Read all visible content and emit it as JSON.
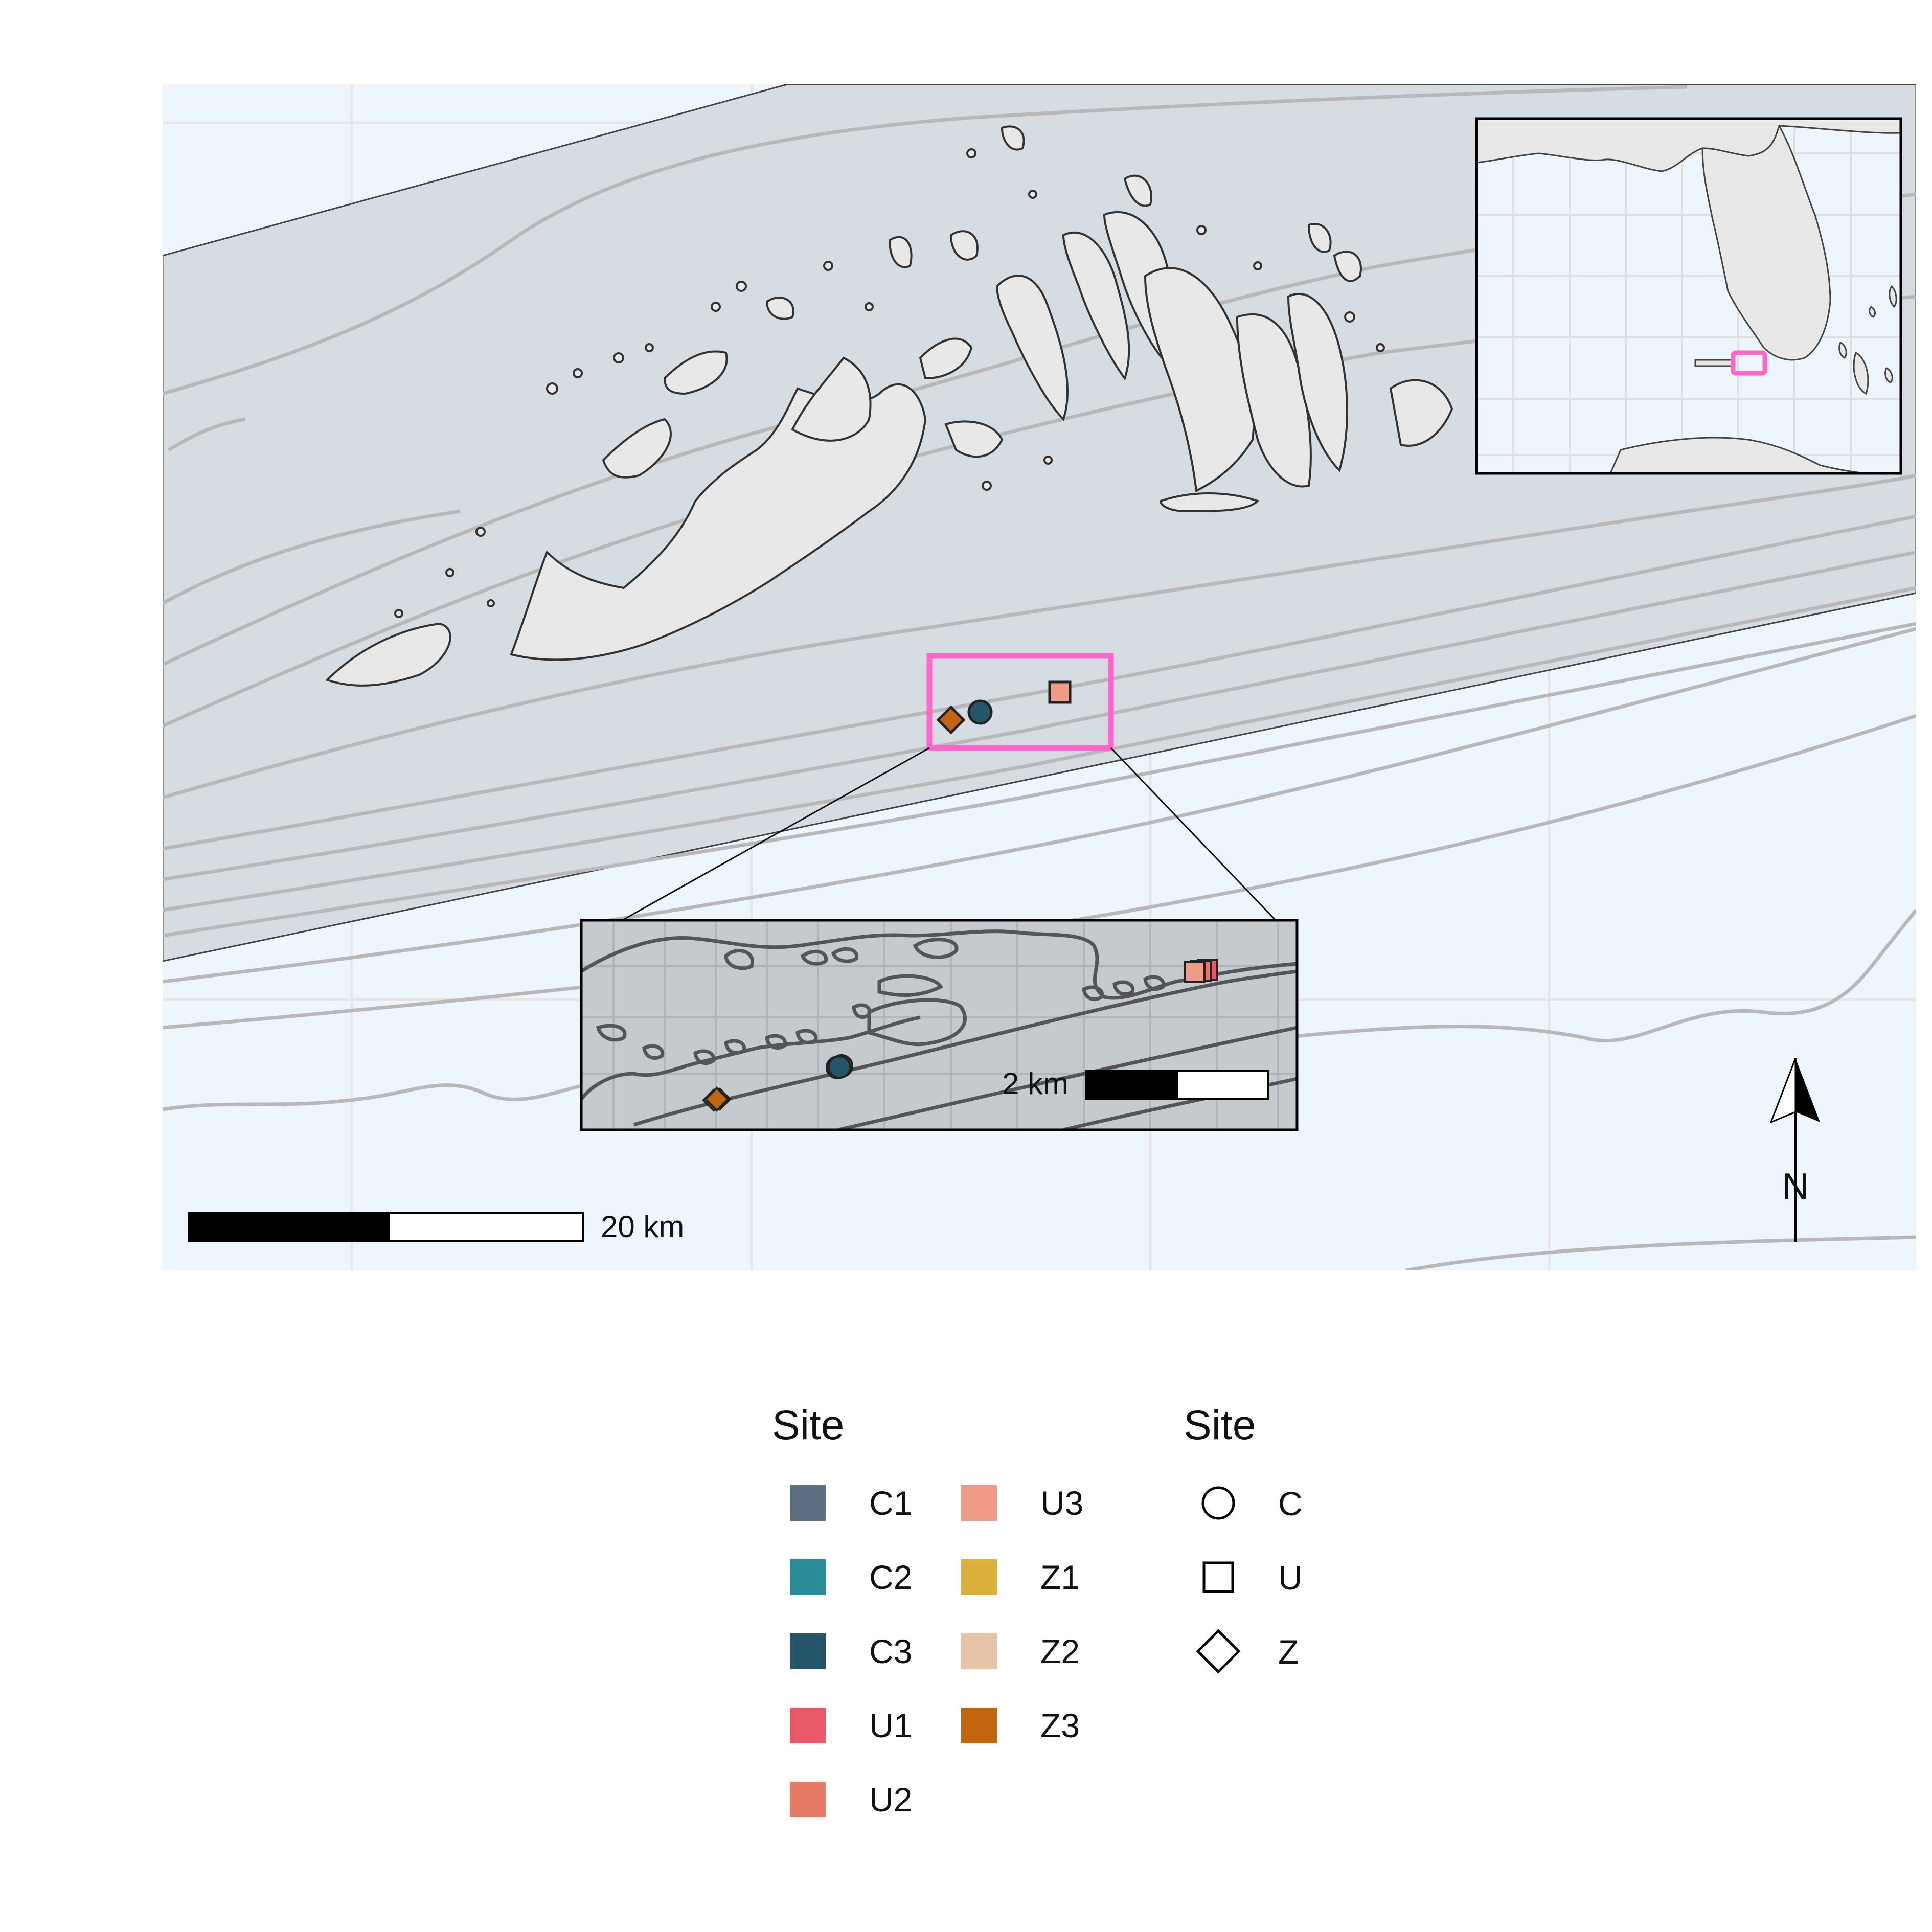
{
  "colors": {
    "ocean": "#eef6fd",
    "shelf": "#d6dde2",
    "land": "#e8e8e8",
    "contour": "#b8b8b8",
    "coast": "#333333",
    "highlight": "#ff66cc",
    "inset_bg": "#c5cacf",
    "inset_contour": "#555555"
  },
  "scalebar_main": {
    "label": "20 km"
  },
  "scalebar_inset": {
    "label": "2 km"
  },
  "north_arrow": {
    "label": "N"
  },
  "legend_fill": {
    "title": "Site",
    "items": [
      {
        "label": "C1",
        "color": "#5b6e82"
      },
      {
        "label": "C2",
        "color": "#2a8c96"
      },
      {
        "label": "C3",
        "color": "#24556b"
      },
      {
        "label": "U1",
        "color": "#e95a68"
      },
      {
        "label": "U2",
        "color": "#e77a67"
      },
      {
        "label": "U3",
        "color": "#ef9b88"
      },
      {
        "label": "Z1",
        "color": "#d9b13a"
      },
      {
        "label": "Z2",
        "color": "#e6c5a6"
      },
      {
        "label": "Z3",
        "color": "#c2650f"
      }
    ]
  },
  "legend_shape": {
    "title": "Site",
    "items": [
      {
        "label": "C",
        "shape": "circle"
      },
      {
        "label": "U",
        "shape": "square"
      },
      {
        "label": "Z",
        "shape": "diamond"
      }
    ]
  },
  "sites_main": [
    {
      "site": "Z3",
      "shape": "diamond"
    },
    {
      "site": "C3",
      "shape": "circle"
    },
    {
      "site": "U3",
      "shape": "square"
    }
  ]
}
